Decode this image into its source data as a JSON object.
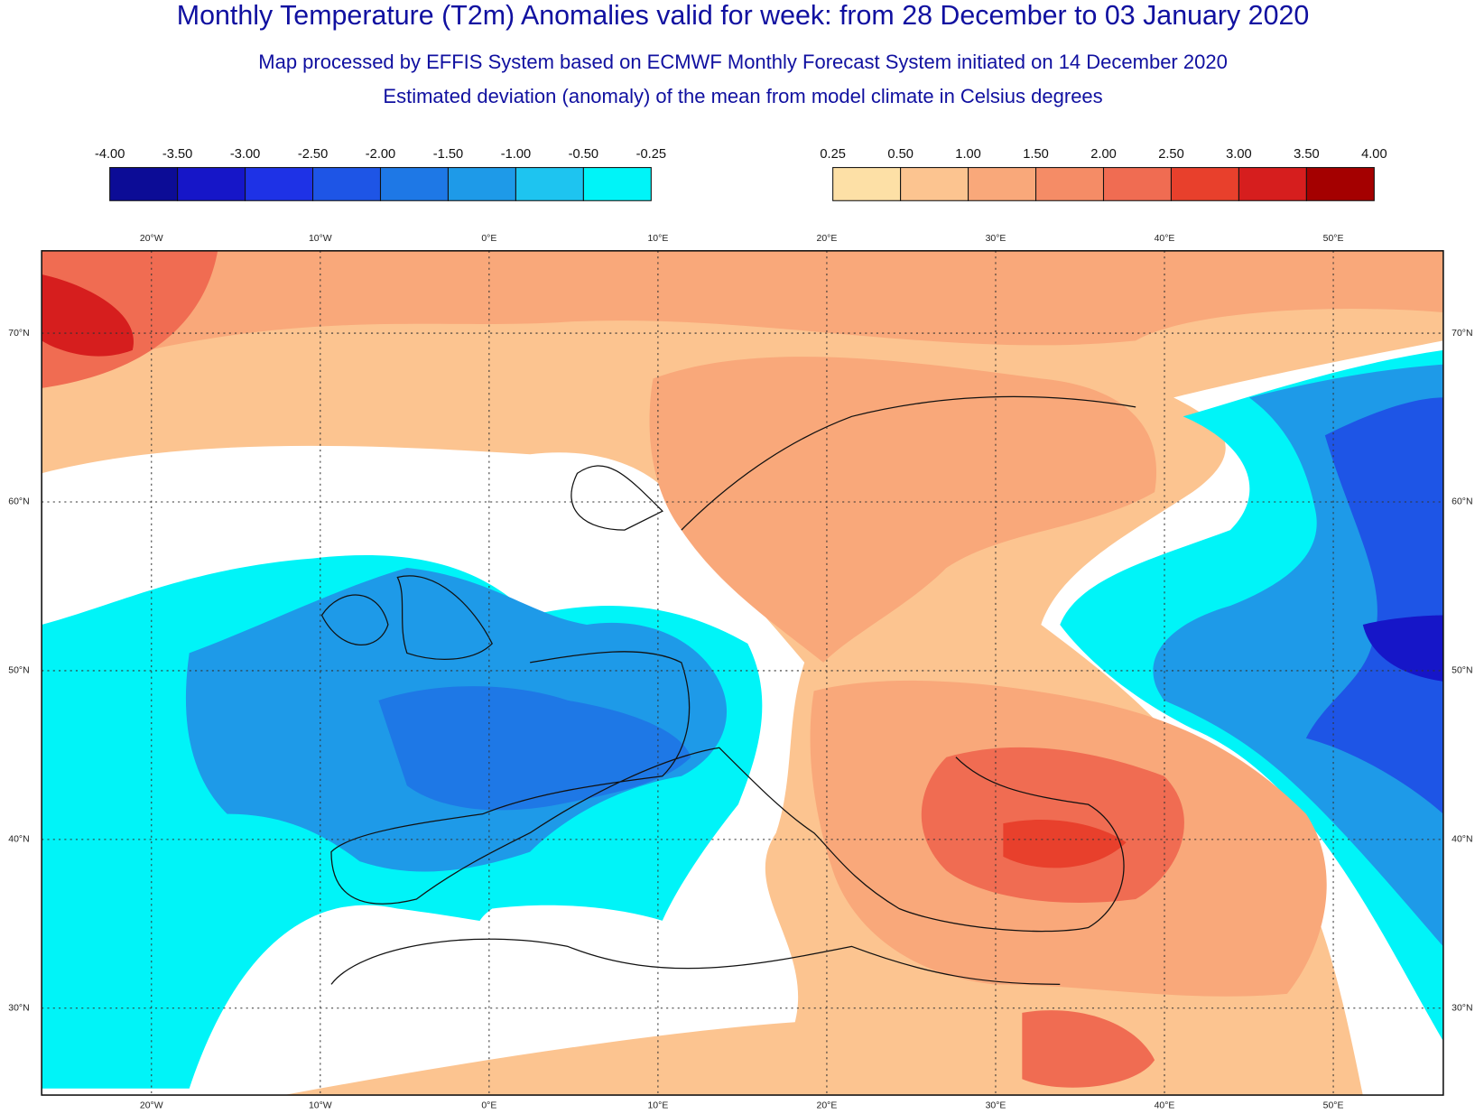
{
  "header": {
    "title": "Monthly Temperature (T2m) Anomalies valid for week: from 28 December to 03 January 2020",
    "subtitle": "Map processed by EFFIS System based on ECMWF Monthly Forecast System initiated on 14 December 2020",
    "description": "Estimated deviation (anomaly) of the mean from model climate in Celsius degrees"
  },
  "legend": {
    "negative": {
      "labels": [
        "-4.00",
        "-3.50",
        "-3.00",
        "-2.50",
        "-2.00",
        "-1.50",
        "-1.00",
        "-0.50",
        "-0.25"
      ],
      "colors": [
        "#0c0c96",
        "#1616c8",
        "#1e32e6",
        "#1e55e6",
        "#1e78e6",
        "#1e9ae8",
        "#1ec4f0",
        "#00f4f8"
      ]
    },
    "positive": {
      "labels": [
        "0.25",
        "0.50",
        "1.00",
        "1.50",
        "2.00",
        "2.50",
        "3.00",
        "3.50",
        "4.00"
      ],
      "colors": [
        "#fde0a6",
        "#fcc490",
        "#f9a87a",
        "#f58c66",
        "#f06c52",
        "#e8402c",
        "#d61e1e",
        "#a40000"
      ]
    }
  },
  "map": {
    "lon_labels": [
      "20°W",
      "10°W",
      "0°E",
      "10°E",
      "20°E",
      "30°E",
      "40°E",
      "50°E"
    ],
    "lat_labels": [
      "70°N",
      "60°N",
      "50°N",
      "40°N",
      "30°N"
    ]
  }
}
